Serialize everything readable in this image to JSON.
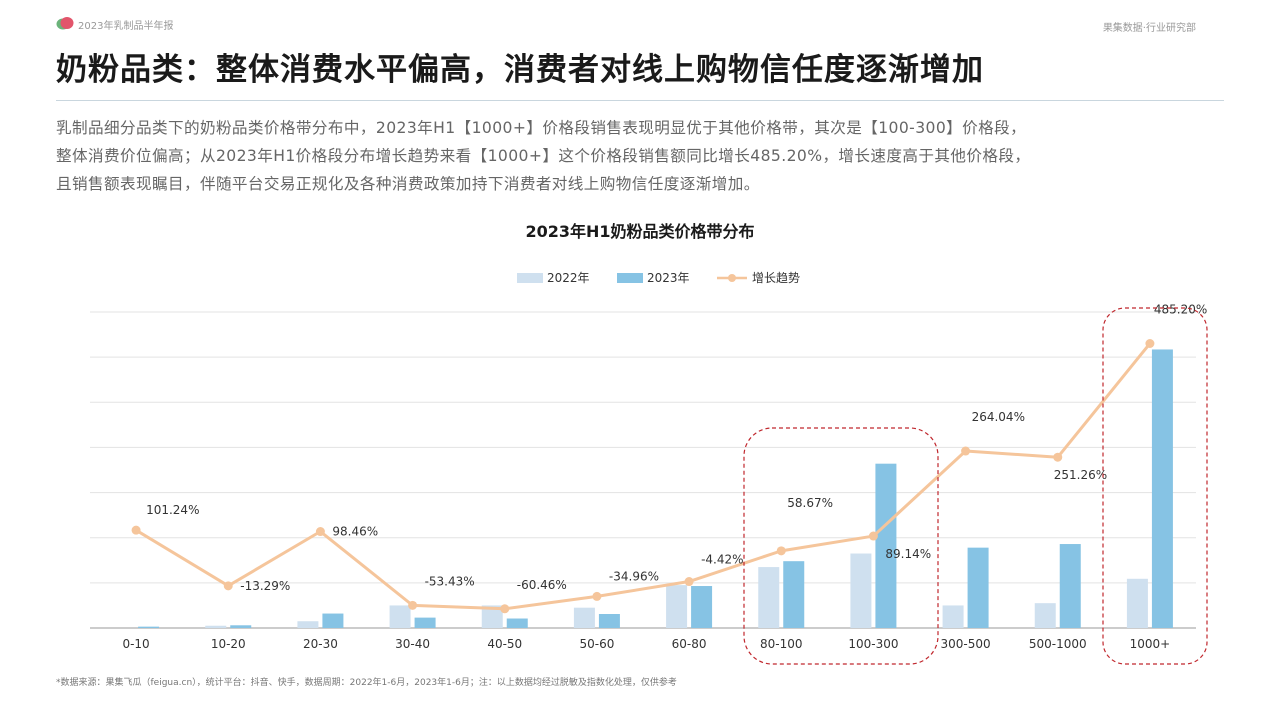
{
  "header": {
    "report_name": "2023年乳制品半年报",
    "department": "果集数据·行业研究部"
  },
  "page": {
    "title": "奶粉品类：整体消费水平偏高，消费者对线上购物信任度逐渐增加",
    "summary_lines": [
      "乳制品细分品类下的奶粉品类价格带分布中，2023年H1【1000+】价格段销售表现明显优于其他价格带，其次是【100-300】价格段，",
      "整体消费价位偏高；从2023年H1价格段分布增长趋势来看【1000+】这个价格段销售额同比增长485.20%，增长速度高于其他价格段，",
      "且销售额表现瞩目，伴随平台交易正规化及各种消费政策加持下消费者对线上购物信任度逐渐增加。"
    ],
    "footnote": "*数据来源：果集飞瓜（feigua.cn），统计平台：抖音、快手，数据周期：2022年1-6月，2023年1-6月；注：以上数据均经过脱敏及指数化处理，仅供参考"
  },
  "colors": {
    "bar_2022": "#cfe0ef",
    "bar_2023": "#86c3e4",
    "trend": "#f5c59b",
    "highlight": "#c0272d",
    "grid": "#e3e3e3",
    "logo_green": "#6bb37a",
    "logo_red": "#e2556b"
  },
  "chart_data": {
    "type": "bar",
    "title": "2023年H1奶粉品类价格带分布",
    "categories": [
      "0-10",
      "10-20",
      "20-30",
      "30-40",
      "40-50",
      "50-60",
      "60-80",
      "80-100",
      "100-300",
      "300-500",
      "500-1000",
      "1000+"
    ],
    "series": [
      {
        "name": "2022年",
        "type": "bar",
        "values": [
          0,
          0.5,
          1.5,
          5,
          5,
          4.5,
          9.5,
          13.5,
          16.5,
          5,
          5.5,
          10.9
        ]
      },
      {
        "name": "2023年",
        "type": "bar",
        "values": [
          0.3,
          0.6,
          3.2,
          2.3,
          2.1,
          3.1,
          9.3,
          14.8,
          36.4,
          17.8,
          18.6,
          61.7
        ]
      },
      {
        "name": "增长趋势",
        "type": "line",
        "axis": "secondary",
        "values": [
          101.24,
          -13.29,
          98.46,
          -53.43,
          -60.46,
          -34.96,
          -4.42,
          58.67,
          89.14,
          264.04,
          251.26,
          485.2
        ],
        "labels": [
          "101.24%",
          "-13.29%",
          "98.46%",
          "-53.43%",
          "-60.46%",
          "-34.96%",
          "-4.42%",
          "58.67%",
          "89.14%",
          "264.04%",
          "251.26%",
          "485.20%"
        ]
      }
    ],
    "y_axis": {
      "min": 0,
      "max": 70,
      "labels_shown": false
    },
    "y2_axis": {
      "min": -100,
      "max": 550,
      "labels_shown": false
    },
    "grid": true,
    "legend_position": "top-center",
    "highlighted_groups": [
      [
        "80-100",
        "100-300"
      ],
      [
        "1000+"
      ]
    ]
  }
}
